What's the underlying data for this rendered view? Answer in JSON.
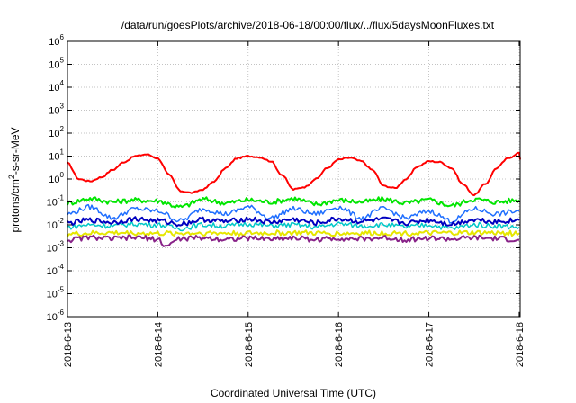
{
  "chart_data": {
    "type": "line",
    "title": "/data/run/goesPlots/archive/2018-06-18/00:00/flux/../flux/5daysMoonFluxes.txt",
    "xlabel": "Coordinated Universal Time (UTC)",
    "ylabel_prefix": "protons/cm",
    "ylabel_sup": "2",
    "ylabel_suffix": "-s-sr-MeV",
    "y_scale": "log",
    "ylim": [
      1e-06,
      1000000.0
    ],
    "y_ticks": [
      {
        "exp": -6,
        "base": "10",
        "sup": "-6"
      },
      {
        "exp": -5,
        "base": "10",
        "sup": "-5"
      },
      {
        "exp": -4,
        "base": "10",
        "sup": "-4"
      },
      {
        "exp": -3,
        "base": "10",
        "sup": "-3"
      },
      {
        "exp": -2,
        "base": "10",
        "sup": "-2"
      },
      {
        "exp": -1,
        "base": "10",
        "sup": "-1"
      },
      {
        "exp": 0,
        "base": "10",
        "sup": "0"
      },
      {
        "exp": 1,
        "base": "10",
        "sup": "1"
      },
      {
        "exp": 2,
        "base": "10",
        "sup": "2"
      },
      {
        "exp": 3,
        "base": "10",
        "sup": "3"
      },
      {
        "exp": 4,
        "base": "10",
        "sup": "4"
      },
      {
        "exp": 5,
        "base": "10",
        "sup": "5"
      },
      {
        "exp": 6,
        "base": "10",
        "sup": "6"
      }
    ],
    "x_range": [
      "2018-06-13",
      "2018-06-18 00:15"
    ],
    "x_tick_labels": [
      "2018-6-13",
      "2018-6-14",
      "2018-6-15",
      "2018-6-16",
      "2018-6-17",
      "2018-6-18"
    ],
    "x_tick_dates": [
      "2018-06-13",
      "2018-06-14",
      "2018-06-15",
      "2018-06-16",
      "2018-06-17",
      "2018-06-18"
    ],
    "grid": true,
    "legend": "none",
    "series": [
      {
        "color": "#ff0000",
        "width": 2,
        "x": [
          "2018-06-13 00:00",
          "2018-06-13 03:00",
          "2018-06-13 06:00",
          "2018-06-13 09:00",
          "2018-06-13 12:00",
          "2018-06-13 15:00",
          "2018-06-13 18:00",
          "2018-06-13 21:00",
          "2018-06-14 00:00",
          "2018-06-14 03:00",
          "2018-06-14 06:00",
          "2018-06-14 09:00",
          "2018-06-14 12:00",
          "2018-06-14 15:00",
          "2018-06-14 18:00",
          "2018-06-14 21:00",
          "2018-06-15 00:00",
          "2018-06-15 03:00",
          "2018-06-15 06:00",
          "2018-06-15 09:00",
          "2018-06-15 12:00",
          "2018-06-15 15:00",
          "2018-06-15 18:00",
          "2018-06-15 21:00",
          "2018-06-16 00:00",
          "2018-06-16 03:00",
          "2018-06-16 06:00",
          "2018-06-16 09:00",
          "2018-06-16 12:00",
          "2018-06-16 15:00",
          "2018-06-16 18:00",
          "2018-06-16 21:00",
          "2018-06-17 00:00",
          "2018-06-17 03:00",
          "2018-06-17 06:00",
          "2018-06-17 09:00",
          "2018-06-17 12:00",
          "2018-06-17 15:00",
          "2018-06-17 18:00",
          "2018-06-17 21:00",
          "2018-06-18 00:00",
          "2018-06-18 00:15"
        ],
        "y": [
          5.0,
          1.0,
          0.8,
          1.2,
          2.5,
          5.5,
          10,
          12,
          8,
          1.5,
          0.3,
          0.25,
          0.35,
          0.8,
          3.0,
          8.0,
          10,
          9,
          6,
          1.5,
          0.35,
          0.45,
          1.0,
          3.0,
          7.0,
          8.5,
          6.0,
          2.5,
          0.5,
          0.4,
          1.0,
          3.5,
          6.0,
          5.5,
          3.0,
          0.6,
          0.2,
          0.6,
          3.0,
          8.0,
          14,
          7.0
        ]
      },
      {
        "color": "#00e600",
        "width": 2,
        "x": [
          "2018-06-13 00:00",
          "2018-06-13 06:00",
          "2018-06-13 12:00",
          "2018-06-13 18:00",
          "2018-06-14 00:00",
          "2018-06-14 06:00",
          "2018-06-14 12:00",
          "2018-06-14 18:00",
          "2018-06-15 00:00",
          "2018-06-15 06:00",
          "2018-06-15 12:00",
          "2018-06-15 18:00",
          "2018-06-16 00:00",
          "2018-06-16 06:00",
          "2018-06-16 12:00",
          "2018-06-16 18:00",
          "2018-06-17 00:00",
          "2018-06-17 06:00",
          "2018-06-17 12:00",
          "2018-06-17 18:00",
          "2018-06-18 00:00"
        ],
        "y": [
          0.09,
          0.14,
          0.1,
          0.12,
          0.11,
          0.06,
          0.13,
          0.09,
          0.12,
          0.1,
          0.14,
          0.08,
          0.12,
          0.1,
          0.13,
          0.09,
          0.12,
          0.07,
          0.13,
          0.1,
          0.12
        ]
      },
      {
        "color": "#1e6eff",
        "width": 1.5,
        "x": [
          "2018-06-13 00:00",
          "2018-06-13 06:00",
          "2018-06-13 12:00",
          "2018-06-13 18:00",
          "2018-06-14 00:00",
          "2018-06-14 06:00",
          "2018-06-14 12:00",
          "2018-06-14 18:00",
          "2018-06-15 00:00",
          "2018-06-15 06:00",
          "2018-06-15 12:00",
          "2018-06-15 18:00",
          "2018-06-16 00:00",
          "2018-06-16 06:00",
          "2018-06-16 12:00",
          "2018-06-16 18:00",
          "2018-06-17 00:00",
          "2018-06-17 06:00",
          "2018-06-17 12:00",
          "2018-06-17 18:00",
          "2018-06-18 00:00"
        ],
        "y": [
          0.03,
          0.06,
          0.02,
          0.05,
          0.04,
          0.015,
          0.05,
          0.03,
          0.06,
          0.02,
          0.05,
          0.03,
          0.06,
          0.02,
          0.05,
          0.02,
          0.04,
          0.015,
          0.05,
          0.03,
          0.04
        ]
      },
      {
        "color": "#00c8c8",
        "width": 1.5,
        "x": [
          "2018-06-13 00:00",
          "2018-06-13 06:00",
          "2018-06-13 12:00",
          "2018-06-13 18:00",
          "2018-06-14 00:00",
          "2018-06-14 06:00",
          "2018-06-14 12:00",
          "2018-06-14 18:00",
          "2018-06-15 00:00",
          "2018-06-15 06:00",
          "2018-06-15 12:00",
          "2018-06-15 18:00",
          "2018-06-16 00:00",
          "2018-06-16 06:00",
          "2018-06-16 12:00",
          "2018-06-16 18:00",
          "2018-06-17 00:00",
          "2018-06-17 06:00",
          "2018-06-17 12:00",
          "2018-06-17 18:00",
          "2018-06-18 00:00"
        ],
        "y": [
          0.008,
          0.01,
          0.009,
          0.011,
          0.01,
          0.007,
          0.01,
          0.009,
          0.011,
          0.009,
          0.01,
          0.008,
          0.011,
          0.009,
          0.01,
          0.008,
          0.01,
          0.007,
          0.01,
          0.009,
          0.008
        ]
      },
      {
        "color": "#0000c0",
        "width": 2,
        "x": [
          "2018-06-13 00:00",
          "2018-06-13 06:00",
          "2018-06-13 12:00",
          "2018-06-13 18:00",
          "2018-06-14 00:00",
          "2018-06-14 06:00",
          "2018-06-14 12:00",
          "2018-06-14 18:00",
          "2018-06-15 00:00",
          "2018-06-15 06:00",
          "2018-06-15 12:00",
          "2018-06-15 18:00",
          "2018-06-16 00:00",
          "2018-06-16 06:00",
          "2018-06-16 12:00",
          "2018-06-16 18:00",
          "2018-06-17 00:00",
          "2018-06-17 06:00",
          "2018-06-17 12:00",
          "2018-06-17 18:00",
          "2018-06-18 00:00"
        ],
        "y": [
          0.012,
          0.016,
          0.013,
          0.018,
          0.015,
          0.011,
          0.017,
          0.014,
          0.018,
          0.013,
          0.017,
          0.012,
          0.018,
          0.014,
          0.017,
          0.012,
          0.016,
          0.011,
          0.017,
          0.014,
          0.016
        ]
      },
      {
        "color": "#e6e600",
        "width": 2,
        "x": [
          "2018-06-13 00:00",
          "2018-06-13 12:00",
          "2018-06-14 00:00",
          "2018-06-14 12:00",
          "2018-06-15 00:00",
          "2018-06-15 12:00",
          "2018-06-16 00:00",
          "2018-06-16 12:00",
          "2018-06-17 00:00",
          "2018-06-17 12:00",
          "2018-06-18 00:00"
        ],
        "y": [
          0.004,
          0.0045,
          0.0042,
          0.0044,
          0.0043,
          0.0045,
          0.0042,
          0.0044,
          0.0043,
          0.0045,
          0.0043
        ]
      },
      {
        "color": "#882288",
        "width": 2,
        "x": [
          "2018-06-13 00:00",
          "2018-06-13 06:00",
          "2018-06-13 12:00",
          "2018-06-13 18:00",
          "2018-06-14 00:00",
          "2018-06-14 02:00",
          "2018-06-14 06:00",
          "2018-06-14 12:00",
          "2018-06-14 18:00",
          "2018-06-15 00:00",
          "2018-06-15 06:00",
          "2018-06-15 12:00",
          "2018-06-15 18:00",
          "2018-06-16 00:00",
          "2018-06-16 06:00",
          "2018-06-16 12:00",
          "2018-06-16 18:00",
          "2018-06-17 00:00",
          "2018-06-17 06:00",
          "2018-06-17 12:00",
          "2018-06-17 18:00",
          "2018-06-18 00:00"
        ],
        "y": [
          0.0022,
          0.0028,
          0.0025,
          0.0028,
          0.0024,
          0.0012,
          0.0025,
          0.0027,
          0.0024,
          0.0026,
          0.0025,
          0.0027,
          0.0023,
          0.0026,
          0.0024,
          0.0027,
          0.0023,
          0.0026,
          0.0024,
          0.0027,
          0.0025,
          0.0022
        ]
      }
    ]
  }
}
